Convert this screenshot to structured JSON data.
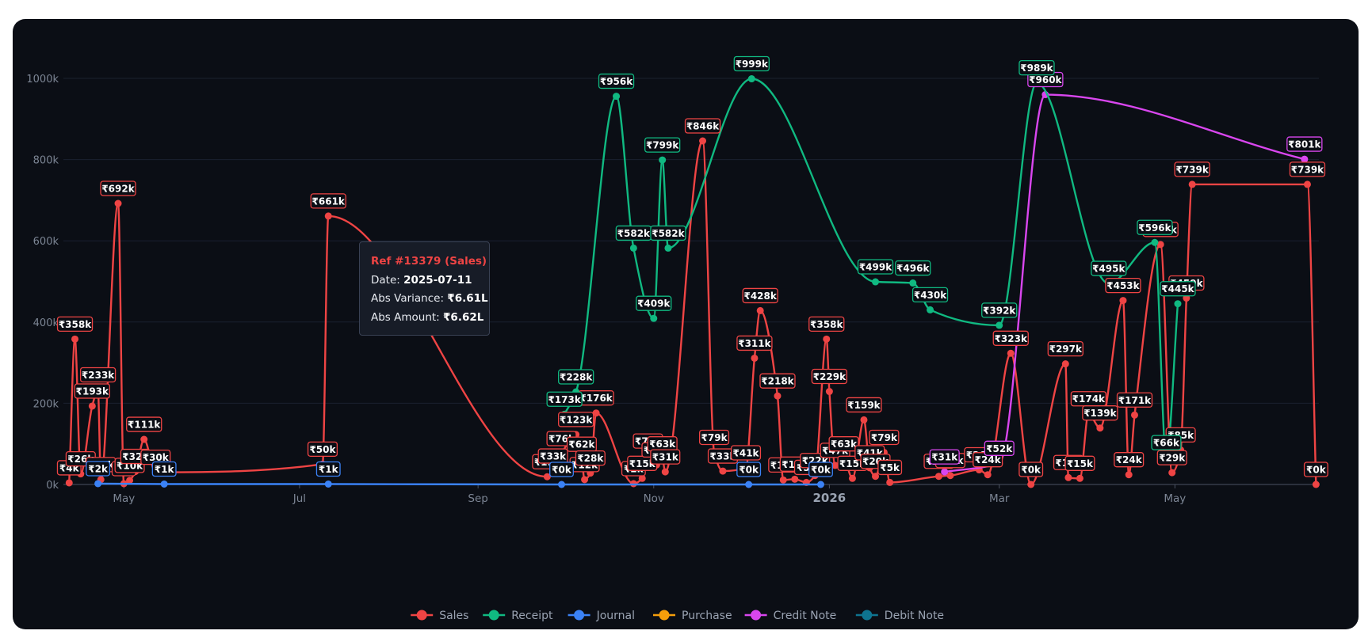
{
  "tooltip": {
    "title": "Ref #13379 (Sales)",
    "rows": [
      {
        "label": "Date:",
        "value": "2025-07-11"
      },
      {
        "label": "Abs Variance:",
        "value": "₹6.61L"
      },
      {
        "label": "Abs Amount:",
        "value": "₹6.62L"
      }
    ]
  },
  "colors": {
    "Sales": "#ef4444",
    "Receipt": "#10b981",
    "Journal": "#3b82f6",
    "Purchase": "#f59e0b",
    "Credit Note": "#d946ef",
    "Debit Note": "#0e7490",
    "background": "#0b0e15"
  },
  "chart_data": {
    "type": "line",
    "y_ticks": [
      "0k",
      "200k",
      "400k",
      "600k",
      "800k",
      "1000k"
    ],
    "ylim": [
      0,
      1000
    ],
    "xlim": [
      "2025-04-10",
      "2026-06-20"
    ],
    "x_ticks": [
      {
        "date": "2025-05-01",
        "label": "May",
        "bold": false
      },
      {
        "date": "2025-07-01",
        "label": "Jul",
        "bold": false
      },
      {
        "date": "2025-09-01",
        "label": "Sep",
        "bold": false
      },
      {
        "date": "2025-11-01",
        "label": "Nov",
        "bold": false
      },
      {
        "date": "2026-01-01",
        "label": "2026",
        "bold": true
      },
      {
        "date": "2026-03-01",
        "label": "Mar",
        "bold": false
      },
      {
        "date": "2026-05-01",
        "label": "May",
        "bold": false
      }
    ],
    "series": [
      {
        "name": "Sales",
        "points": [
          [
            "2025-04-12",
            4
          ],
          [
            "2025-04-14",
            358
          ],
          [
            "2025-04-16",
            26
          ],
          [
            "2025-04-20",
            193
          ],
          [
            "2025-04-22",
            233
          ],
          [
            "2025-04-23",
            12
          ],
          [
            "2025-04-29",
            692
          ],
          [
            "2025-05-01",
            2
          ],
          [
            "2025-05-03",
            10
          ],
          [
            "2025-05-05",
            32
          ],
          [
            "2025-05-08",
            111
          ],
          [
            "2025-05-12",
            30
          ],
          [
            "2025-07-09",
            50
          ],
          [
            "2025-07-11",
            661
          ],
          [
            "2025-09-25",
            19
          ],
          [
            "2025-09-27",
            33
          ],
          [
            "2025-09-30",
            76
          ],
          [
            "2025-10-05",
            123
          ],
          [
            "2025-10-07",
            62
          ],
          [
            "2025-10-08",
            12
          ],
          [
            "2025-10-10",
            28
          ],
          [
            "2025-10-12",
            176
          ],
          [
            "2025-10-25",
            2
          ],
          [
            "2025-10-28",
            15
          ],
          [
            "2025-10-30",
            70
          ],
          [
            "2025-11-02",
            48
          ],
          [
            "2025-11-04",
            63
          ],
          [
            "2025-11-05",
            31
          ],
          [
            "2025-11-18",
            846
          ],
          [
            "2025-11-22",
            79
          ],
          [
            "2025-11-25",
            33
          ],
          [
            "2025-12-03",
            41
          ],
          [
            "2025-12-06",
            311
          ],
          [
            "2025-12-08",
            428
          ],
          [
            "2025-12-14",
            218
          ],
          [
            "2025-12-16",
            11
          ],
          [
            "2025-12-20",
            13
          ],
          [
            "2025-12-24",
            5
          ],
          [
            "2025-12-27",
            22
          ],
          [
            "2025-12-31",
            358
          ],
          [
            "2026-01-01",
            229
          ],
          [
            "2026-01-03",
            47
          ],
          [
            "2026-01-06",
            63
          ],
          [
            "2026-01-09",
            15
          ],
          [
            "2026-01-13",
            159
          ],
          [
            "2026-01-15",
            41
          ],
          [
            "2026-01-17",
            20
          ],
          [
            "2026-01-20",
            79
          ],
          [
            "2026-01-22",
            5
          ],
          [
            "2026-02-08",
            20
          ],
          [
            "2026-02-12",
            22
          ],
          [
            "2026-02-22",
            36
          ],
          [
            "2026-02-25",
            24
          ],
          [
            "2026-03-05",
            323
          ],
          [
            "2026-03-12",
            0
          ],
          [
            "2026-03-24",
            297
          ],
          [
            "2026-03-25",
            17
          ],
          [
            "2026-03-29",
            15
          ],
          [
            "2026-04-01",
            174
          ],
          [
            "2026-04-05",
            139
          ],
          [
            "2026-04-13",
            453
          ],
          [
            "2026-04-15",
            24
          ],
          [
            "2026-04-17",
            171
          ],
          [
            "2026-04-26",
            591
          ],
          [
            "2026-04-30",
            29
          ],
          [
            "2026-05-03",
            85
          ],
          [
            "2026-05-05",
            459
          ],
          [
            "2026-05-07",
            739
          ],
          [
            "2026-06-16",
            739
          ],
          [
            "2026-06-19",
            0
          ]
        ]
      },
      {
        "name": "Receipt",
        "points": [
          [
            "2025-10-01",
            173
          ],
          [
            "2025-10-05",
            228
          ],
          [
            "2025-10-19",
            956
          ],
          [
            "2025-10-25",
            582
          ],
          [
            "2025-11-01",
            409
          ],
          [
            "2025-11-04",
            799
          ],
          [
            "2025-11-06",
            582
          ],
          [
            "2025-12-05",
            999
          ],
          [
            "2026-01-17",
            499
          ],
          [
            "2026-01-30",
            496
          ],
          [
            "2026-02-05",
            430
          ],
          [
            "2026-03-01",
            392
          ],
          [
            "2026-03-14",
            989
          ],
          [
            "2026-04-08",
            495
          ],
          [
            "2026-04-24",
            596
          ],
          [
            "2026-04-28",
            66
          ],
          [
            "2026-05-02",
            445
          ]
        ]
      },
      {
        "name": "Journal",
        "points": [
          [
            "2025-04-22",
            2
          ],
          [
            "2025-05-15",
            1
          ],
          [
            "2025-07-11",
            1
          ],
          [
            "2025-09-30",
            0
          ],
          [
            "2025-12-04",
            0
          ],
          [
            "2025-12-29",
            0
          ]
        ]
      },
      {
        "name": "Purchase",
        "points": []
      },
      {
        "name": "Credit Note",
        "points": [
          [
            "2026-02-10",
            31
          ],
          [
            "2026-03-01",
            52
          ],
          [
            "2026-03-17",
            960
          ],
          [
            "2026-06-15",
            801
          ]
        ]
      },
      {
        "name": "Debit Note",
        "points": []
      }
    ]
  },
  "legend": {
    "items": [
      {
        "label": "Sales",
        "color": "#ef4444"
      },
      {
        "label": "Receipt",
        "color": "#10b981"
      },
      {
        "label": "Journal",
        "color": "#3b82f6"
      },
      {
        "label": "Purchase",
        "color": "#f59e0b"
      },
      {
        "label": "Credit Note",
        "color": "#d946ef"
      },
      {
        "label": "Debit Note",
        "color": "#0e7490"
      }
    ]
  }
}
